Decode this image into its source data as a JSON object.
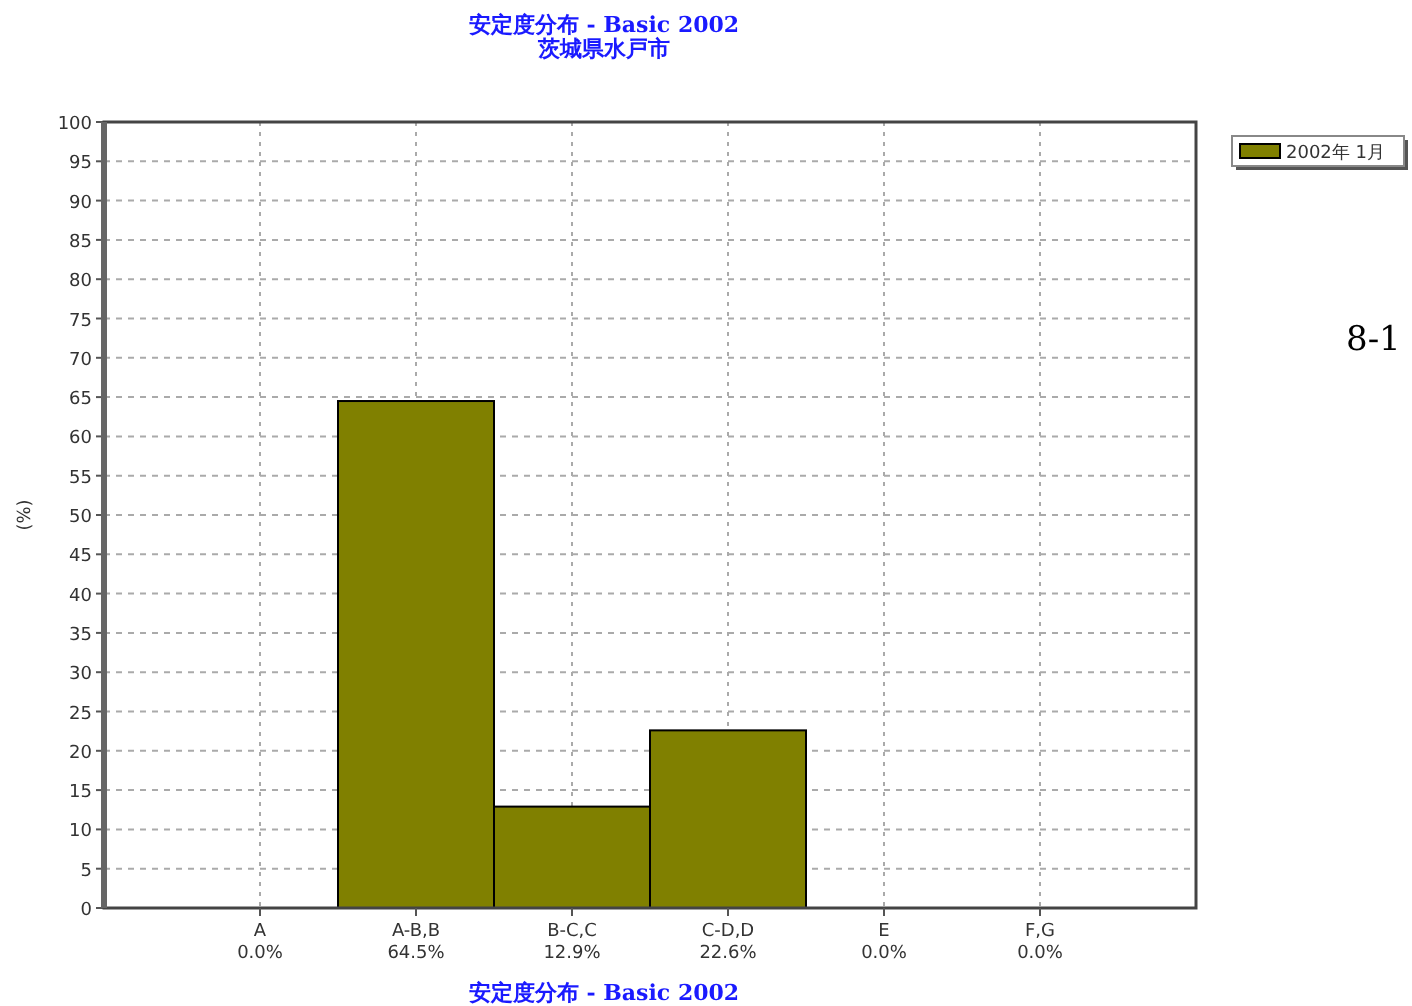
{
  "chart_data": {
    "type": "bar",
    "title": "安定度分布 - Basic 2002",
    "subtitle": "茨城県水戸市",
    "ylabel": "(%)",
    "categories": [
      "A",
      "A-B,B",
      "B-C,C",
      "C-D,D",
      "E",
      "F,G"
    ],
    "series": [
      {
        "name": "2002年 1月",
        "color": "#808000",
        "values": [
          0.0,
          64.5,
          12.9,
          22.6,
          0.0,
          0.0
        ],
        "value_labels": [
          "0.0%",
          "64.5%",
          "12.9%",
          "22.6%",
          "0.0%",
          "0.0%"
        ]
      }
    ],
    "ylim": [
      0,
      100
    ],
    "yticks": [
      0,
      5,
      10,
      15,
      20,
      25,
      30,
      35,
      40,
      45,
      50,
      55,
      60,
      65,
      70,
      75,
      80,
      85,
      90,
      95,
      100
    ],
    "grid": true,
    "legend": "right",
    "annotations": [
      "8-1",
      "安定度分布 - Basic 2002"
    ]
  }
}
